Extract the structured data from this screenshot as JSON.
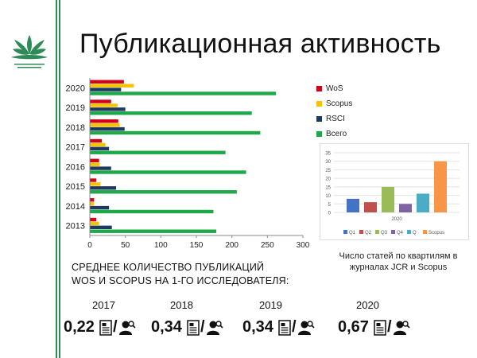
{
  "slide": {
    "title": "Публикационная активность",
    "heading_line1": "СРЕДНЕЕ КОЛИЧЕСТВО ПУБЛИКАЦИЙ",
    "heading_line2": "WOS И SCOPUS НА 1-ГО ИССЛЕДОВАТЕЛЯ:",
    "mini_caption_line1": "Число статей по квартилям в",
    "mini_caption_line2": "журналах JCR и Scopus",
    "logo_icon": "lotus-logo-icon",
    "per_researcher": [
      {
        "year": "2017",
        "value": "0,22"
      },
      {
        "year": "2018",
        "value": "0,34"
      },
      {
        "year": "2019",
        "value": "0,34"
      },
      {
        "year": "2020",
        "value": "0,67"
      }
    ],
    "per_researcher_icons": [
      "document-icon",
      "researcher-icon"
    ]
  },
  "chart_data": [
    {
      "type": "bar",
      "orientation": "horizontal",
      "categories": [
        "2020",
        "2019",
        "2018",
        "2017",
        "2016",
        "2015",
        "2014",
        "2013"
      ],
      "series": [
        {
          "name": "WoS",
          "color": "#d0021b",
          "values": [
            48,
            30,
            40,
            17,
            13,
            9,
            6,
            9
          ]
        },
        {
          "name": "Scopus",
          "color": "#f5c400",
          "values": [
            62,
            39,
            42,
            22,
            14,
            15,
            6,
            13
          ]
        },
        {
          "name": "RSCI",
          "color": "#1f3a5f",
          "values": [
            44,
            50,
            49,
            27,
            30,
            37,
            27,
            31
          ]
        },
        {
          "name": "Всего",
          "color": "#1ea84a",
          "values": [
            262,
            228,
            240,
            191,
            220,
            207,
            174,
            178
          ]
        }
      ],
      "xlim": [
        0,
        300
      ],
      "xticks": [
        "0",
        "50",
        "100",
        "150",
        "200",
        "250",
        "300"
      ],
      "legend_position": "right",
      "grid": false
    },
    {
      "type": "bar",
      "categories": [
        "2020"
      ],
      "series": [
        {
          "name": "Q1",
          "color": "#4472c4",
          "values": [
            8
          ]
        },
        {
          "name": "Q2",
          "color": "#c0504d",
          "values": [
            6
          ]
        },
        {
          "name": "Q3",
          "color": "#9bbb59",
          "values": [
            15
          ]
        },
        {
          "name": "Q4",
          "color": "#8064a2",
          "values": [
            5
          ]
        },
        {
          "name": "Q",
          "color": "#4bacc6",
          "values": [
            11
          ]
        },
        {
          "name": "Scopus",
          "color": "#f79646",
          "values": [
            30
          ]
        }
      ],
      "ylim": [
        0,
        35
      ],
      "yticks": [
        "0",
        "5",
        "10",
        "15",
        "20",
        "25",
        "30",
        "35"
      ],
      "legend_position": "bottom",
      "grid": true
    }
  ]
}
